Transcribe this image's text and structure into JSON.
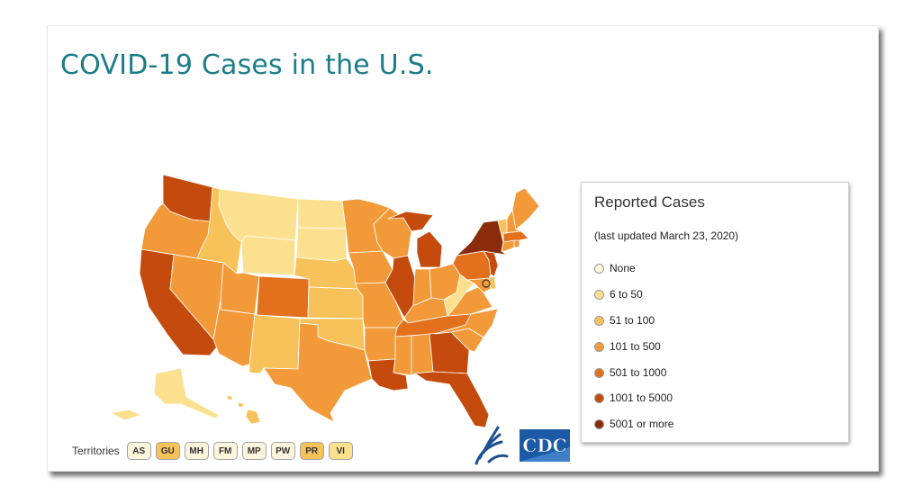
{
  "title": "COVID-19 Cases in the U.S.",
  "legend": {
    "title": "Reported Cases",
    "subtitle": "(last updated March 23, 2020)",
    "items": [
      {
        "label": "None",
        "color": "#fdf6dd"
      },
      {
        "label": "6 to 50",
        "color": "#fbe08f"
      },
      {
        "label": "51 to 100",
        "color": "#f8c25a"
      },
      {
        "label": "101 to 500",
        "color": "#f29a3a"
      },
      {
        "label": "501 to 1000",
        "color": "#e2701c"
      },
      {
        "label": "1001 to 5000",
        "color": "#c54a0e"
      },
      {
        "label": "5001 or more",
        "color": "#8a2c0b"
      }
    ]
  },
  "territories": {
    "label": "Territories",
    "buttons": [
      {
        "code": "AS",
        "color": "#fdf6dd"
      },
      {
        "code": "GU",
        "color": "#f8c25a"
      },
      {
        "code": "MH",
        "color": "#fdf6dd"
      },
      {
        "code": "FM",
        "color": "#fdf6dd"
      },
      {
        "code": "MP",
        "color": "#fdf6dd"
      },
      {
        "code": "PW",
        "color": "#fdf6dd"
      },
      {
        "code": "PR",
        "color": "#f8c25a"
      },
      {
        "code": "VI",
        "color": "#fbe08f"
      }
    ]
  },
  "logos": {
    "hhs": "hhs-eagle-logo",
    "cdc": "CDC"
  },
  "map": {
    "states": [
      {
        "id": "WA",
        "level": 6
      },
      {
        "id": "OR",
        "level": 4
      },
      {
        "id": "CA",
        "level": 6
      },
      {
        "id": "NV",
        "level": 4
      },
      {
        "id": "ID",
        "level": 3
      },
      {
        "id": "MT",
        "level": 2
      },
      {
        "id": "WY",
        "level": 2
      },
      {
        "id": "UT",
        "level": 4
      },
      {
        "id": "AZ",
        "level": 4
      },
      {
        "id": "CO",
        "level": 5
      },
      {
        "id": "NM",
        "level": 3
      },
      {
        "id": "ND",
        "level": 2
      },
      {
        "id": "SD",
        "level": 2
      },
      {
        "id": "NE",
        "level": 3
      },
      {
        "id": "KS",
        "level": 3
      },
      {
        "id": "OK",
        "level": 3
      },
      {
        "id": "TX",
        "level": 4
      },
      {
        "id": "MN",
        "level": 4
      },
      {
        "id": "IA",
        "level": 4
      },
      {
        "id": "MO",
        "level": 4
      },
      {
        "id": "AR",
        "level": 4
      },
      {
        "id": "LA",
        "level": 6
      },
      {
        "id": "WI",
        "level": 4
      },
      {
        "id": "IL",
        "level": 6
      },
      {
        "id": "MI",
        "level": 6
      },
      {
        "id": "IN",
        "level": 4
      },
      {
        "id": "OH",
        "level": 4
      },
      {
        "id": "KY",
        "level": 4
      },
      {
        "id": "TN",
        "level": 5
      },
      {
        "id": "MS",
        "level": 4
      },
      {
        "id": "AL",
        "level": 4
      },
      {
        "id": "GA",
        "level": 6
      },
      {
        "id": "FL",
        "level": 6
      },
      {
        "id": "SC",
        "level": 4
      },
      {
        "id": "NC",
        "level": 4
      },
      {
        "id": "VA",
        "level": 4
      },
      {
        "id": "WV",
        "level": 2
      },
      {
        "id": "MD",
        "level": 4
      },
      {
        "id": "DE",
        "level": 3
      },
      {
        "id": "PA",
        "level": 5
      },
      {
        "id": "NJ",
        "level": 6
      },
      {
        "id": "NY",
        "level": 7
      },
      {
        "id": "CT",
        "level": 4
      },
      {
        "id": "RI",
        "level": 4
      },
      {
        "id": "MA",
        "level": 5
      },
      {
        "id": "VT",
        "level": 3
      },
      {
        "id": "NH",
        "level": 4
      },
      {
        "id": "ME",
        "level": 4
      },
      {
        "id": "AK",
        "level": 2
      },
      {
        "id": "HI",
        "level": 3
      }
    ]
  }
}
